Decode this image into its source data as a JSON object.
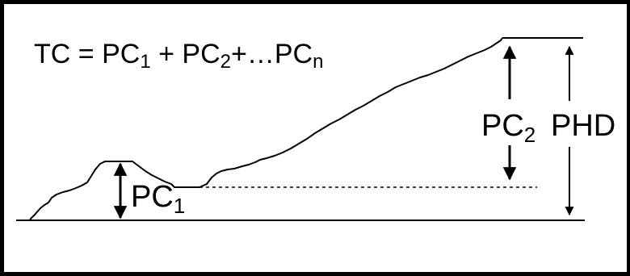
{
  "formula": {
    "lhs": "TC",
    "eq": " = ",
    "t1": "PC",
    "t1_sub": "1",
    "plus1": " + ",
    "t2": "PC",
    "t2_sub": "2",
    "plus2": "+…",
    "tn": "PC",
    "tn_sub": "n"
  },
  "labels": {
    "pc1": "PC",
    "pc1_sub": "1",
    "pc2": "PC",
    "pc2_sub": "2",
    "phd": "PHD"
  },
  "colors": {
    "ink": "#000000",
    "background": "#ffffff"
  }
}
